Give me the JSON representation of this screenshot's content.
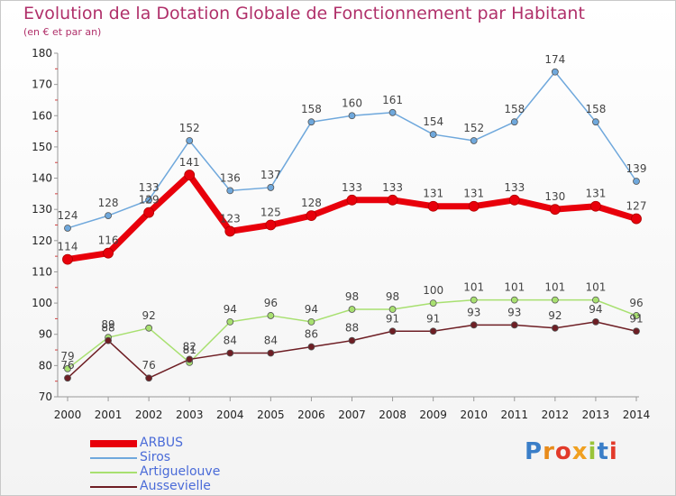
{
  "title": "Evolution de la Dotation Globale de Fonctionnement par Habitant",
  "subtitle": "(en € et par an)",
  "logo": {
    "text": "Proxiti",
    "letters": [
      "P",
      "r",
      "o",
      "x",
      "i",
      "t",
      "i"
    ],
    "colors": [
      "#3a7ec8",
      "#e88b1a",
      "#e23a2a",
      "#f0a020",
      "#9ac43a",
      "#3a7ec8",
      "#e23a2a"
    ]
  },
  "chart_data": {
    "type": "line",
    "title": "Evolution de la Dotation Globale de Fonctionnement par Habitant",
    "subtitle": "(en € et par an)",
    "categories": [
      "2000",
      "2001",
      "2002",
      "2003",
      "2004",
      "2005",
      "2006",
      "2007",
      "2008",
      "2009",
      "2010",
      "2011",
      "2012",
      "2013",
      "2014"
    ],
    "ylim": [
      70,
      180
    ],
    "yticks": [
      70,
      80,
      90,
      100,
      110,
      120,
      130,
      140,
      150,
      160,
      170,
      180
    ],
    "grid": false,
    "legend_position": "bottom-left",
    "series": [
      {
        "name": "ARBUS",
        "color": "#e8000b",
        "values": [
          114,
          116,
          129,
          141,
          123,
          125,
          128,
          133,
          133,
          131,
          131,
          133,
          130,
          131,
          127
        ],
        "labels": [
          "114",
          "116",
          "129",
          "141",
          "123",
          "125",
          "128",
          "133",
          "133",
          "131",
          "131",
          "133",
          "130",
          "131",
          "127"
        ]
      },
      {
        "name": "Siros",
        "color": "#6fa8dc",
        "values": [
          124,
          128,
          133,
          152,
          136,
          137,
          158,
          160,
          161,
          154,
          152,
          158,
          174,
          158,
          139
        ],
        "labels": [
          "124",
          "128",
          "133",
          "152",
          "136",
          "137",
          "158",
          "160",
          "161",
          "154",
          "152",
          "158",
          "174",
          "158",
          "139"
        ]
      },
      {
        "name": "Artiguelouve",
        "color": "#a8e070",
        "values": [
          79,
          89,
          92,
          81,
          94,
          96,
          94,
          98,
          98,
          100,
          101,
          101,
          101,
          101,
          96
        ],
        "labels": [
          "79",
          "89",
          "92",
          "81",
          "94",
          "96",
          "94",
          "98",
          "98",
          "100",
          "101",
          "101",
          "101",
          "101",
          "96"
        ]
      },
      {
        "name": "Aussevielle",
        "color": "#6e1e24",
        "values": [
          76,
          88,
          76,
          82,
          84,
          84,
          86,
          88,
          91,
          91,
          93,
          93,
          92,
          94,
          91
        ],
        "labels": [
          "76",
          "88",
          "76",
          "82",
          "84",
          "84",
          "86",
          "88",
          "91",
          "91",
          "93",
          "93",
          "92",
          "94",
          "91"
        ]
      }
    ]
  }
}
